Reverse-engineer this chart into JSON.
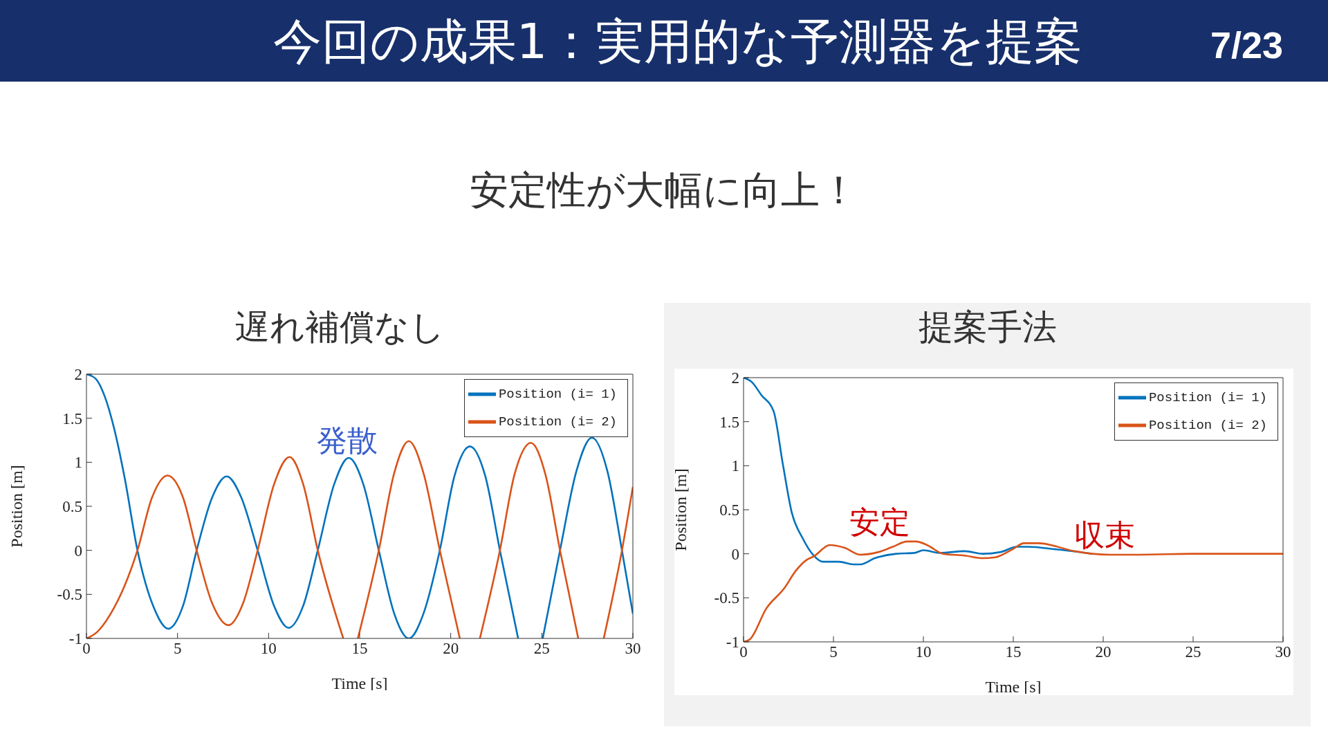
{
  "chart_data": [
    {
      "type": "line",
      "title": "遅れ補償なし",
      "xlabel": "Time [s]",
      "ylabel": "Position [m]",
      "xlim": [
        0,
        30
      ],
      "ylim": [
        -1,
        2
      ],
      "xticks": [
        0,
        5,
        10,
        15,
        20,
        25,
        30
      ],
      "yticks": [
        -1,
        -0.5,
        0,
        0.5,
        1,
        1.5,
        2
      ],
      "legend": "top right",
      "annotations": [
        "今回の成果1：実用的な予測器を提案",
        "7/23",
        "安定性が大幅に向上！",
        "発散"
      ],
      "series": [
        {
          "name": "Position (i= 1)",
          "color": "#0072bd",
          "x": [
            0,
            0.5,
            1,
            1.5,
            2.1,
            2.8,
            3.7,
            4.5,
            5.3,
            6.05,
            6.9,
            7.7,
            8.5,
            9.4,
            10.3,
            11.1,
            11.9,
            12.7,
            13.6,
            14.4,
            15.2,
            16.05,
            16.9,
            17.7,
            18.5,
            19.4,
            20.2,
            21.05,
            21.9,
            22.7,
            23.7,
            23.75,
            25,
            25.05,
            26.0,
            26.9,
            27.75,
            28.6,
            29.4,
            30
          ],
          "values": [
            2,
            1.95,
            1.75,
            1.4,
            0.82,
            0,
            -0.65,
            -0.89,
            -0.63,
            0,
            0.6,
            0.84,
            0.6,
            0,
            -0.63,
            -0.88,
            -0.63,
            0,
            0.75,
            1.05,
            0.75,
            0,
            -0.72,
            -1.0,
            -0.72,
            0,
            0.84,
            1.18,
            0.84,
            0,
            -1,
            null,
            null,
            -1,
            0,
            0.9,
            1.28,
            0.9,
            0,
            -0.72
          ]
        },
        {
          "name": "Position (i= 2)",
          "color": "#d95319",
          "x": [
            0,
            0.57,
            1.3,
            2.1,
            2.8,
            3.6,
            4.45,
            5.3,
            6.05,
            6.9,
            7.8,
            8.6,
            9.4,
            10.3,
            11.15,
            11.9,
            12.7,
            14.1,
            14.15,
            14.85,
            14.9,
            16.05,
            16.9,
            17.7,
            18.5,
            19.4,
            20.5,
            20.55,
            21.55,
            21.6,
            22.7,
            23.5,
            24.4,
            25.2,
            26.0,
            27.0,
            27.05,
            28.35,
            28.4,
            29.4,
            30
          ],
          "values": [
            -1,
            -0.93,
            -0.73,
            -0.4,
            0,
            0.6,
            0.85,
            0.6,
            0,
            -0.6,
            -0.85,
            -0.6,
            0,
            0.75,
            1.06,
            0.75,
            0,
            -1,
            null,
            null,
            -1,
            0,
            0.88,
            1.24,
            0.88,
            0,
            -1,
            null,
            null,
            -1,
            0,
            0.86,
            1.22,
            0.86,
            0,
            -1,
            null,
            null,
            -1,
            0,
            0.72
          ]
        }
      ]
    },
    {
      "type": "line",
      "title": "提案手法",
      "xlabel": "Time [s]",
      "ylabel": "Position [m]",
      "xlim": [
        0,
        30
      ],
      "ylim": [
        -1,
        2
      ],
      "xticks": [
        0,
        5,
        10,
        15,
        20,
        25,
        30
      ],
      "yticks": [
        -1,
        -0.5,
        0,
        0.5,
        1,
        1.5,
        2
      ],
      "legend": "top right",
      "annotations": [
        "安定",
        "収束"
      ],
      "series": [
        {
          "name": "Position (i= 1)",
          "color": "#0072bd",
          "x": [
            0,
            0.46,
            1.0,
            1.67,
            2.2,
            2.68,
            3.28,
            3.9,
            4.4,
            5.3,
            6.1,
            6.5,
            7.3,
            8.5,
            9.5,
            10.0,
            10.9,
            12.3,
            13.3,
            14.3,
            15.2,
            15.8,
            17.4,
            19.4
          ],
          "values": [
            2,
            1.95,
            1.8,
            1.62,
            1.0,
            0.47,
            0.18,
            -0.02,
            -0.09,
            -0.09,
            -0.12,
            -0.12,
            -0.05,
            0,
            0.01,
            0.04,
            0.01,
            0.03,
            0,
            0.02,
            0.08,
            0.08,
            0.05,
            0
          ]
        },
        {
          "name": "Position (i= 2)",
          "color": "#d95319",
          "x": [
            0,
            0.36,
            1.27,
            2.27,
            2.88,
            3.5,
            3.9,
            4.8,
            5.6,
            6.5,
            7.5,
            8.3,
            9.1,
            9.6,
            10.2,
            11.1,
            12.3,
            13.3,
            14.0,
            14.95,
            15.6,
            16.4,
            18.4,
            19.4,
            20.4,
            22,
            25,
            30
          ],
          "values": [
            -1,
            -0.97,
            -0.62,
            -0.39,
            -0.2,
            -0.07,
            -0.03,
            0.1,
            0.07,
            -0.01,
            0.02,
            0.08,
            0.14,
            0.14,
            0.1,
            0,
            -0.02,
            -0.05,
            -0.04,
            0.05,
            0.12,
            0.12,
            0.03,
            0,
            -0.01,
            -0.01,
            0,
            0
          ]
        }
      ]
    }
  ]
}
